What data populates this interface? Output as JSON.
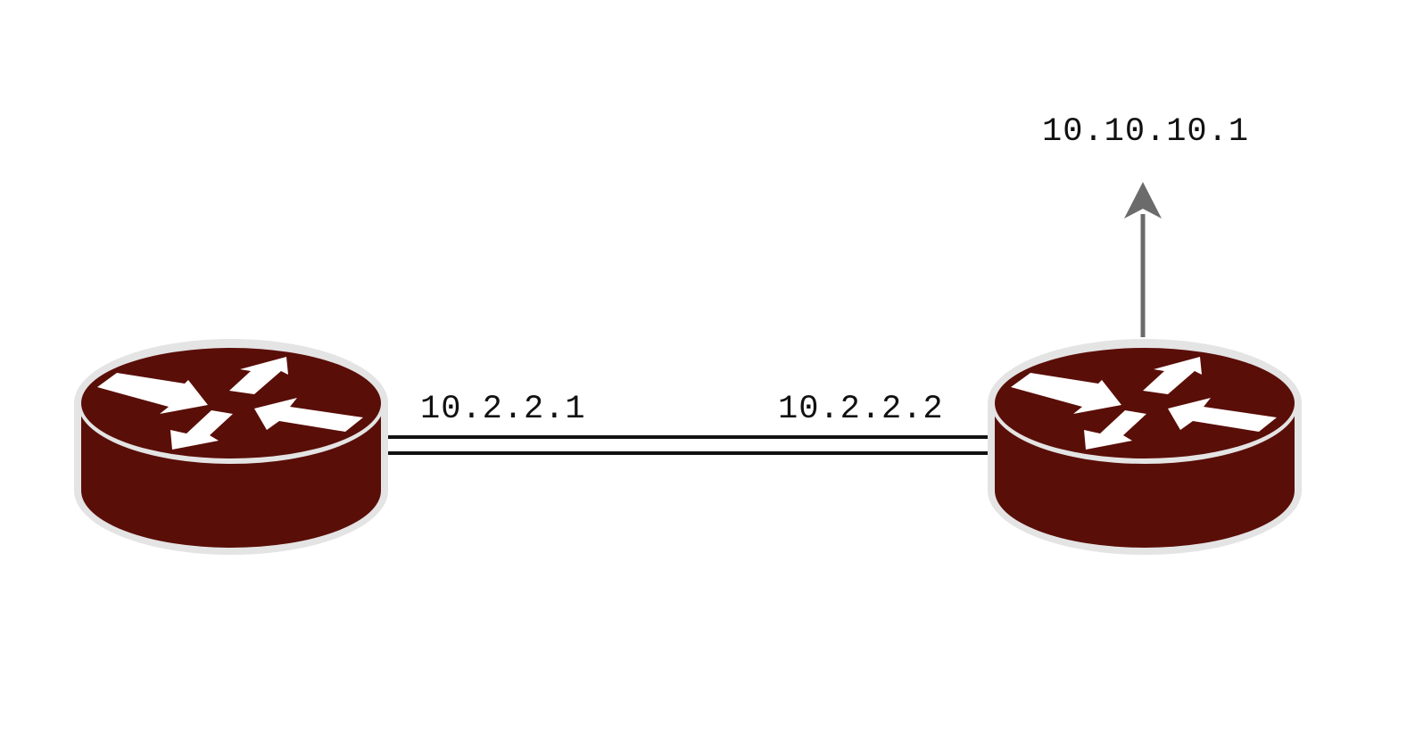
{
  "colors": {
    "router_body": "#5a0e08",
    "router_outline": "#e4e4e4",
    "router_arrows": "#ffffff",
    "link": "#111111",
    "upstream_arrow": "#6b6b6b",
    "background": "#ffffff"
  },
  "icons": {
    "router": "router-icon",
    "upstream": "arrow-up-icon"
  },
  "routers": [
    {
      "name": "router-left",
      "icon": "router-icon"
    },
    {
      "name": "router-right",
      "icon": "router-icon"
    }
  ],
  "links": {
    "left_interface_ip": "10.2.2.1",
    "right_interface_ip": "10.2.2.2"
  },
  "upstream": {
    "destination_ip": "10.10.10.1"
  }
}
